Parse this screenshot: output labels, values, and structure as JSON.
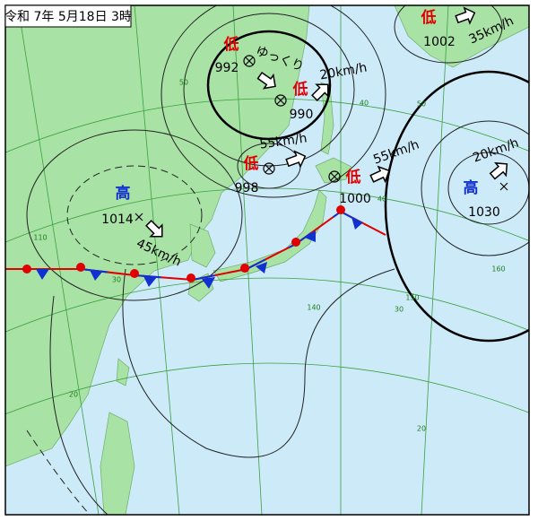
{
  "header": {
    "title": "令和 7年 5月18日 3時"
  },
  "systems": [
    {
      "symbol": "低",
      "pressure": "992",
      "motion": "ゆっくり"
    },
    {
      "symbol": "低",
      "pressure": "990",
      "motion": "20km/h"
    },
    {
      "symbol": "低",
      "pressure": "998",
      "motion": "55km/h"
    },
    {
      "symbol": "低",
      "pressure": "1000",
      "motion": "55km/h"
    },
    {
      "symbol": "低",
      "pressure": "1002",
      "motion": "35km/h"
    },
    {
      "symbol": "高",
      "pressure": "1014",
      "motion": "45km/h"
    },
    {
      "symbol": "高",
      "pressure": "1030",
      "motion": "20km/h"
    }
  ],
  "grid_labels": [
    "50",
    "40",
    "50",
    "30",
    "40",
    "110",
    "140",
    "150",
    "160",
    "30",
    "20",
    "20"
  ]
}
